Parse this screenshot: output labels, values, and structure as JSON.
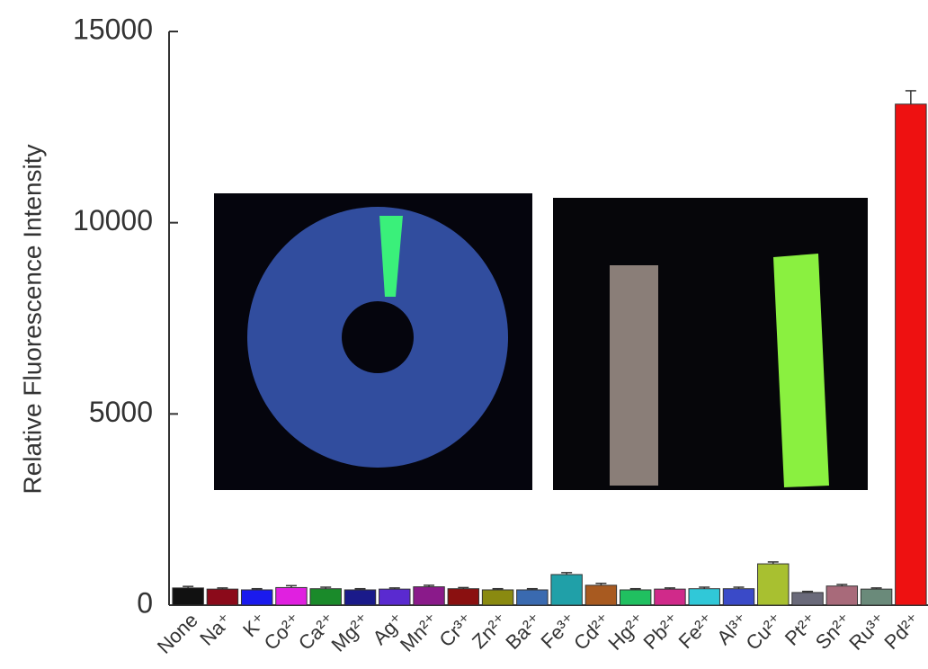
{
  "chart_data": {
    "type": "bar",
    "y_label": "Relative Fluorescence Intensity",
    "categories": [
      "None",
      "Na⁺",
      "K⁺",
      "Co²⁺",
      "Ca²⁺",
      "Mg²⁺",
      "Ag⁺",
      "Mn²⁺",
      "Cr³⁺",
      "Zn²⁺",
      "Ba²⁺",
      "Fe³⁺",
      "Cd²⁺",
      "Hg²⁺",
      "Pb²⁺",
      "Fe²⁺",
      "Al³⁺",
      "Cu²⁺",
      "Pt²⁺",
      "Sn²⁺",
      "Ru³⁺",
      "Pd²⁺"
    ],
    "values": [
      450,
      420,
      400,
      460,
      430,
      400,
      420,
      480,
      430,
      400,
      400,
      800,
      520,
      400,
      420,
      430,
      430,
      1080,
      330,
      500,
      420,
      13100
    ],
    "errors": [
      40,
      30,
      30,
      50,
      40,
      30,
      30,
      40,
      30,
      30,
      30,
      50,
      50,
      30,
      30,
      40,
      40,
      50,
      30,
      40,
      30,
      350
    ],
    "colors": [
      "#111111",
      "#8b0a1a",
      "#1a1aee",
      "#e020e0",
      "#1a8a2a",
      "#1a1a8a",
      "#5a2ad0",
      "#8a1a8a",
      "#8a1010",
      "#8a8a10",
      "#3a6ab0",
      "#20a0a8",
      "#a85a20",
      "#20c060",
      "#d02a8a",
      "#30c8d8",
      "#3a4ac8",
      "#a8c030",
      "#6a6a7a",
      "#a86a7a",
      "#6a8a7a",
      "#ee1111"
    ],
    "ylim": [
      0,
      15000
    ],
    "yticks": [
      0,
      5000,
      10000,
      15000
    ]
  }
}
